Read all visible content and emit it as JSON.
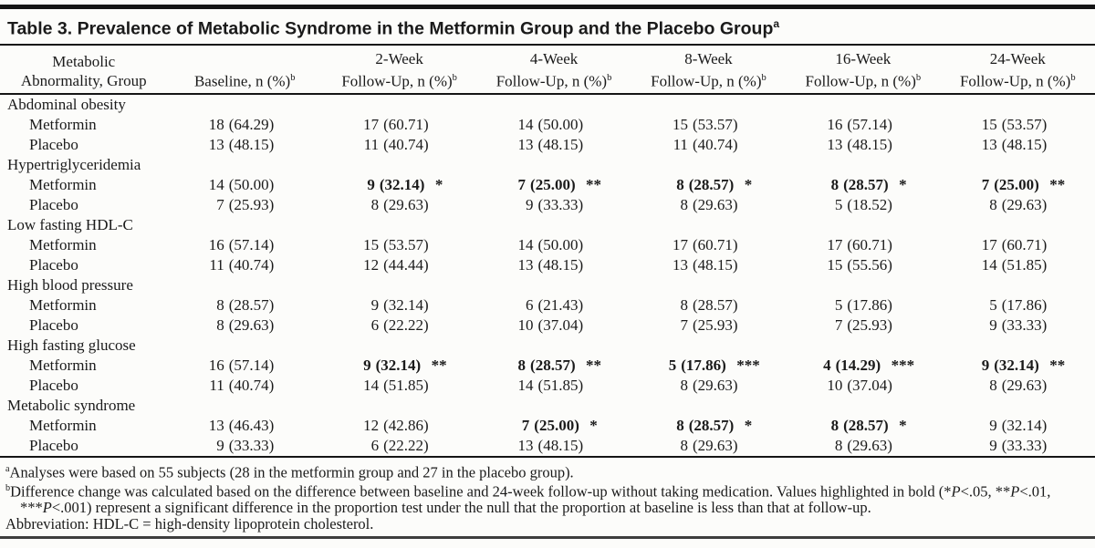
{
  "colors": {
    "text": "#1a1a1a",
    "rule": "#151515",
    "background": "#fcfcfa"
  },
  "title": {
    "text": "Table 3. Prevalence of Metabolic Syndrome in the Metformin Group and the Placebo Group",
    "sup": "a"
  },
  "table": {
    "row_header": {
      "line1": "Metabolic",
      "line2": "Abnormality, Group"
    },
    "columns": [
      {
        "line1": "",
        "line2": "Baseline, n (%)",
        "sup": "b"
      },
      {
        "line1": "2-Week",
        "line2": "Follow-Up, n (%)",
        "sup": "b"
      },
      {
        "line1": "4-Week",
        "line2": "Follow-Up, n (%)",
        "sup": "b"
      },
      {
        "line1": "8-Week",
        "line2": "Follow-Up, n (%)",
        "sup": "b"
      },
      {
        "line1": "16-Week",
        "line2": "Follow-Up, n (%)",
        "sup": "b"
      },
      {
        "line1": "24-Week",
        "line2": "Follow-Up, n (%)",
        "sup": "b"
      }
    ],
    "sections": [
      {
        "label": "Abdominal obesity",
        "rows": [
          {
            "group": "Metformin",
            "cells": [
              "18 (64.29)",
              "17 (60.71)",
              "14 (50.00)",
              "15 (53.57)",
              "16 (57.14)",
              "15 (53.57)"
            ]
          },
          {
            "group": "Placebo",
            "cells": [
              "13 (48.15)",
              "11 (40.74)",
              "13 (48.15)",
              "11 (40.74)",
              "13 (48.15)",
              "13 (48.15)"
            ]
          }
        ]
      },
      {
        "label": "Hypertriglyceridemia",
        "rows": [
          {
            "group": "Metformin",
            "cells": [
              "14 (50.00)",
              "9 (32.14)*",
              "7 (25.00)**",
              "8 (28.57)*",
              "8 (28.57)*",
              "7 (25.00)**"
            ]
          },
          {
            "group": "Placebo",
            "cells": [
              "7 (25.93)",
              "8 (29.63)",
              "9 (33.33)",
              "8 (29.63)",
              "5 (18.52)",
              "8 (29.63)"
            ]
          }
        ]
      },
      {
        "label": "Low fasting HDL-C",
        "rows": [
          {
            "group": "Metformin",
            "cells": [
              "16 (57.14)",
              "15 (53.57)",
              "14 (50.00)",
              "17 (60.71)",
              "17 (60.71)",
              "17 (60.71)"
            ]
          },
          {
            "group": "Placebo",
            "cells": [
              "11 (40.74)",
              "12 (44.44)",
              "13 (48.15)",
              "13 (48.15)",
              "15 (55.56)",
              "14 (51.85)"
            ]
          }
        ]
      },
      {
        "label": "High blood pressure",
        "rows": [
          {
            "group": "Metformin",
            "cells": [
              "8 (28.57)",
              "9 (32.14)",
              "6 (21.43)",
              "8 (28.57)",
              "5 (17.86)",
              "5 (17.86)"
            ]
          },
          {
            "group": "Placebo",
            "cells": [
              "8 (29.63)",
              "6 (22.22)",
              "10 (37.04)",
              "7 (25.93)",
              "7 (25.93)",
              "9 (33.33)"
            ]
          }
        ]
      },
      {
        "label": "High fasting glucose",
        "rows": [
          {
            "group": "Metformin",
            "cells": [
              "16 (57.14)",
              "9 (32.14)**",
              "8 (28.57)**",
              "5 (17.86)***",
              "4 (14.29)***",
              "9 (32.14)**"
            ]
          },
          {
            "group": "Placebo",
            "cells": [
              "11 (40.74)",
              "14 (51.85)",
              "14 (51.85)",
              "8 (29.63)",
              "10 (37.04)",
              "8 (29.63)"
            ]
          }
        ]
      },
      {
        "label": "Metabolic syndrome",
        "rows": [
          {
            "group": "Metformin",
            "cells": [
              "13 (46.43)",
              "12 (42.86)",
              "7 (25.00)*",
              "8 (28.57)*",
              "8 (28.57)*",
              "9 (32.14)"
            ]
          },
          {
            "group": "Placebo",
            "cells": [
              "9 (33.33)",
              "6 (22.22)",
              "13 (48.15)",
              "8 (29.63)",
              "8 (29.63)",
              "9 (33.33)"
            ]
          }
        ]
      }
    ]
  },
  "footnotes": [
    {
      "sup": "a",
      "text": "Analyses were based on 55 subjects (28 in the metformin group and 27 in the placebo group)."
    },
    {
      "sup": "b",
      "text": "Difference change was calculated based on the difference between baseline and 24-week follow-up without taking medication. Values highlighted in bold (*P<.05, **P<.01, ***P<.001) represent a significant difference in the proportion test under the null that the proportion at baseline is less than that at follow-up."
    },
    {
      "sup": "",
      "text": "Abbreviation: HDL-C = high-density lipoprotein cholesterol."
    }
  ]
}
